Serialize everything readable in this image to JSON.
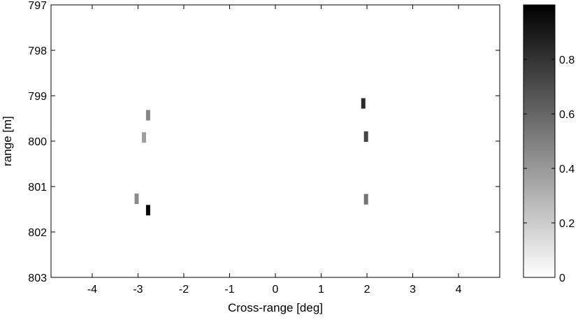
{
  "chart_data": {
    "type": "heatmap",
    "title": "",
    "xlabel": "Cross-range [deg]",
    "ylabel": "range [m]",
    "xlim": [
      -4.9,
      4.9
    ],
    "ylim": [
      797,
      803
    ],
    "y_reversed": true,
    "x_ticks": [
      "-4",
      "-3",
      "-2",
      "-1",
      "0",
      "1",
      "2",
      "3",
      "4"
    ],
    "y_ticks": [
      "797",
      "798",
      "799",
      "800",
      "801",
      "802",
      "803"
    ],
    "colorbar": {
      "colormap": "gray-reversed",
      "range": [
        0,
        1
      ],
      "ticks": [
        "0",
        "0.2",
        "0.4",
        "0.6",
        "0.8"
      ]
    },
    "cells": [
      {
        "x": -2.78,
        "y": 799.43,
        "value": 0.48
      },
      {
        "x": -2.87,
        "y": 799.92,
        "value": 0.38
      },
      {
        "x": -3.03,
        "y": 801.27,
        "value": 0.45
      },
      {
        "x": -2.78,
        "y": 801.52,
        "value": 0.98
      },
      {
        "x": 1.92,
        "y": 799.17,
        "value": 0.83
      },
      {
        "x": 1.98,
        "y": 799.9,
        "value": 0.73
      },
      {
        "x": 1.98,
        "y": 801.28,
        "value": 0.55
      }
    ]
  }
}
